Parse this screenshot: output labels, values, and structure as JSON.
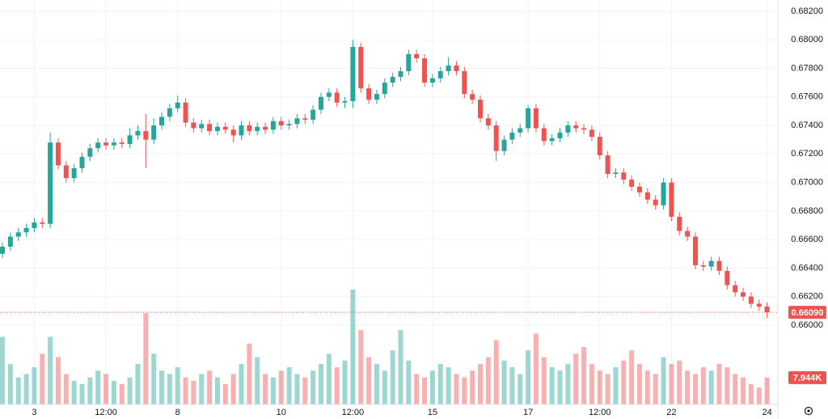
{
  "chart_data": {
    "type": "candlestick",
    "categories": [
      null,
      null,
      null,
      null,
      "3",
      null,
      null,
      null,
      null,
      null,
      null,
      null,
      null,
      "12:00",
      null,
      null,
      null,
      null,
      null,
      null,
      null,
      null,
      "8",
      null,
      null,
      null,
      null,
      null,
      null,
      null,
      null,
      null,
      null,
      null,
      null,
      "10",
      null,
      null,
      null,
      null,
      null,
      null,
      null,
      null,
      "12:00",
      null,
      null,
      null,
      null,
      null,
      null,
      null,
      null,
      null,
      "15",
      null,
      null,
      null,
      null,
      null,
      null,
      null,
      null,
      null,
      null,
      null,
      "17",
      null,
      null,
      null,
      null,
      null,
      null,
      null,
      null,
      "12:00",
      null,
      null,
      null,
      null,
      null,
      null,
      null,
      null,
      "22",
      null,
      null,
      null,
      null,
      null,
      null,
      null,
      null,
      null,
      null,
      null,
      "24"
    ],
    "open": [
      0.665,
      0.6655,
      0.6662,
      0.6665,
      0.6668,
      0.6672,
      0.6671,
      0.6728,
      0.6712,
      0.6703,
      0.671,
      0.6718,
      0.6724,
      0.6728,
      0.6726,
      0.6728,
      0.6727,
      0.6733,
      0.6736,
      0.673,
      0.674,
      0.6746,
      0.6752,
      0.6756,
      0.6742,
      0.6738,
      0.6741,
      0.6736,
      0.6739,
      0.6737,
      0.6733,
      0.674,
      0.6736,
      0.6739,
      0.6737,
      0.6743,
      0.674,
      0.6741,
      0.6745,
      0.6744,
      0.6751,
      0.676,
      0.6763,
      0.6756,
      0.6757,
      0.6795,
      0.6766,
      0.6758,
      0.6762,
      0.677,
      0.6774,
      0.6778,
      0.679,
      0.6787,
      0.677,
      0.6773,
      0.6778,
      0.6782,
      0.6778,
      0.6762,
      0.6758,
      0.6745,
      0.674,
      0.6722,
      0.673,
      0.6735,
      0.6738,
      0.6752,
      0.6738,
      0.6729,
      0.6731,
      0.6735,
      0.674,
      0.6738,
      0.6737,
      0.6732,
      0.6719,
      0.6706,
      0.6707,
      0.6702,
      0.6697,
      0.6693,
      0.6688,
      0.6684,
      0.67,
      0.6676,
      0.6666,
      0.6662,
      0.6642,
      0.6641,
      0.6645,
      0.6638,
      0.6628,
      0.6623,
      0.662,
      0.6615,
      0.6613
    ],
    "high": [
      0.6658,
      0.6665,
      0.6668,
      0.6671,
      0.6675,
      0.6675,
      0.6735,
      0.6731,
      0.6715,
      0.6713,
      0.6721,
      0.6727,
      0.6731,
      0.6731,
      0.6731,
      0.6731,
      0.6738,
      0.674,
      0.6748,
      0.6745,
      0.6749,
      0.6755,
      0.6761,
      0.6759,
      0.6745,
      0.6744,
      0.6744,
      0.6742,
      0.6742,
      0.674,
      0.6743,
      0.6743,
      0.6742,
      0.6742,
      0.6746,
      0.6746,
      0.6744,
      0.6748,
      0.6748,
      0.6754,
      0.6763,
      0.6766,
      0.6766,
      0.676,
      0.68,
      0.6798,
      0.6769,
      0.6765,
      0.6773,
      0.6777,
      0.6781,
      0.6793,
      0.6793,
      0.679,
      0.6776,
      0.6781,
      0.6788,
      0.6785,
      0.6781,
      0.6765,
      0.6761,
      0.6748,
      0.6743,
      0.6733,
      0.6738,
      0.6741,
      0.6754,
      0.6755,
      0.6741,
      0.6734,
      0.6738,
      0.6743,
      0.6743,
      0.6741,
      0.674,
      0.6735,
      0.6722,
      0.671,
      0.671,
      0.6705,
      0.67,
      0.6696,
      0.6691,
      0.6703,
      0.6703,
      0.6679,
      0.6669,
      0.6665,
      0.6645,
      0.6648,
      0.6648,
      0.6641,
      0.6631,
      0.6626,
      0.6623,
      0.6618,
      0.6616
    ],
    "low": [
      0.6647,
      0.6652,
      0.6659,
      0.6662,
      0.6665,
      0.6668,
      0.6668,
      0.6709,
      0.67,
      0.67,
      0.6707,
      0.6715,
      0.6721,
      0.6723,
      0.6723,
      0.6724,
      0.6724,
      0.673,
      0.671,
      0.6727,
      0.6737,
      0.6743,
      0.6749,
      0.6739,
      0.6735,
      0.6735,
      0.6733,
      0.6733,
      0.6734,
      0.6728,
      0.673,
      0.6733,
      0.6733,
      0.6734,
      0.6734,
      0.6737,
      0.6737,
      0.6738,
      0.6741,
      0.6741,
      0.6748,
      0.6757,
      0.6753,
      0.6752,
      0.6752,
      0.6763,
      0.6755,
      0.6755,
      0.6759,
      0.6767,
      0.6771,
      0.6775,
      0.6784,
      0.6767,
      0.6767,
      0.677,
      0.6775,
      0.6775,
      0.6759,
      0.6755,
      0.6742,
      0.6737,
      0.6715,
      0.6719,
      0.6727,
      0.6732,
      0.6735,
      0.6735,
      0.6726,
      0.6726,
      0.6728,
      0.6732,
      0.6735,
      0.6734,
      0.6729,
      0.6716,
      0.6703,
      0.6703,
      0.6699,
      0.6694,
      0.669,
      0.6685,
      0.6681,
      0.6681,
      0.6673,
      0.6663,
      0.6659,
      0.6639,
      0.6638,
      0.6638,
      0.6635,
      0.6625,
      0.662,
      0.6617,
      0.6612,
      0.661,
      0.6605
    ],
    "close": [
      0.6655,
      0.6662,
      0.6665,
      0.6668,
      0.6672,
      0.6671,
      0.6728,
      0.6712,
      0.6703,
      0.671,
      0.6718,
      0.6724,
      0.6728,
      0.6726,
      0.6728,
      0.6727,
      0.6733,
      0.6736,
      0.673,
      0.674,
      0.6746,
      0.6752,
      0.6756,
      0.6742,
      0.6738,
      0.6741,
      0.6736,
      0.6739,
      0.6737,
      0.6733,
      0.674,
      0.6736,
      0.6739,
      0.6737,
      0.6743,
      0.674,
      0.6741,
      0.6745,
      0.6744,
      0.6751,
      0.676,
      0.6763,
      0.6756,
      0.6757,
      0.6795,
      0.6766,
      0.6758,
      0.6762,
      0.677,
      0.6774,
      0.6778,
      0.679,
      0.6787,
      0.677,
      0.6773,
      0.6778,
      0.6782,
      0.6778,
      0.6762,
      0.6758,
      0.6745,
      0.674,
      0.6722,
      0.673,
      0.6735,
      0.6738,
      0.6752,
      0.6738,
      0.6729,
      0.6731,
      0.6735,
      0.674,
      0.6738,
      0.6737,
      0.6732,
      0.6719,
      0.6706,
      0.6707,
      0.6702,
      0.6697,
      0.6693,
      0.6688,
      0.6684,
      0.67,
      0.6676,
      0.6666,
      0.6662,
      0.6642,
      0.6641,
      0.6645,
      0.6638,
      0.6628,
      0.6623,
      0.662,
      0.6615,
      0.6613,
      0.6609
    ],
    "volume": [
      20000,
      12000,
      8000,
      9000,
      11000,
      15000,
      20000,
      14000,
      9000,
      7000,
      6000,
      8000,
      10000,
      9000,
      7000,
      6000,
      8000,
      12000,
      27000,
      15000,
      10000,
      9000,
      11000,
      8000,
      7000,
      9000,
      10000,
      8000,
      6000,
      9000,
      12000,
      18000,
      14000,
      9000,
      8000,
      10000,
      11000,
      9000,
      8000,
      10000,
      12000,
      15000,
      11000,
      13000,
      34000,
      22000,
      14000,
      12000,
      10000,
      16000,
      22000,
      13000,
      9000,
      8000,
      10000,
      12000,
      11000,
      9000,
      8000,
      10000,
      12000,
      14000,
      19000,
      13000,
      11000,
      9000,
      16000,
      21000,
      14000,
      11000,
      10000,
      12000,
      15000,
      17000,
      12000,
      10000,
      9000,
      11000,
      13000,
      16000,
      12000,
      10000,
      9000,
      14000,
      12000,
      13000,
      10000,
      9000,
      11000,
      10000,
      12000,
      11000,
      9000,
      8000,
      6000,
      5000,
      7944
    ],
    "ylim": [
      0.65444,
      0.68279
    ],
    "yticks": [
      {
        "value": 0.682,
        "label": "0.68200"
      },
      {
        "value": 0.68,
        "label": "0.68000"
      },
      {
        "value": 0.678,
        "label": "0.67800"
      },
      {
        "value": 0.676,
        "label": "0.67600"
      },
      {
        "value": 0.674,
        "label": "0.67400"
      },
      {
        "value": 0.672,
        "label": "0.67200"
      },
      {
        "value": 0.67,
        "label": "0.67000"
      },
      {
        "value": 0.668,
        "label": "0.66800"
      },
      {
        "value": 0.666,
        "label": "0.66600"
      },
      {
        "value": 0.664,
        "label": "0.66400"
      },
      {
        "value": 0.662,
        "label": "0.66200"
      },
      {
        "value": 0.66,
        "label": "0.66000"
      }
    ],
    "volume_lim": [
      0,
      34000
    ],
    "last_price": {
      "value": 0.6609,
      "label": "0.66090"
    },
    "last_volume": {
      "value": 7944,
      "label": "7.944K"
    },
    "colors": {
      "up": "#26a69a",
      "down": "#ef5350"
    },
    "grid": true
  }
}
